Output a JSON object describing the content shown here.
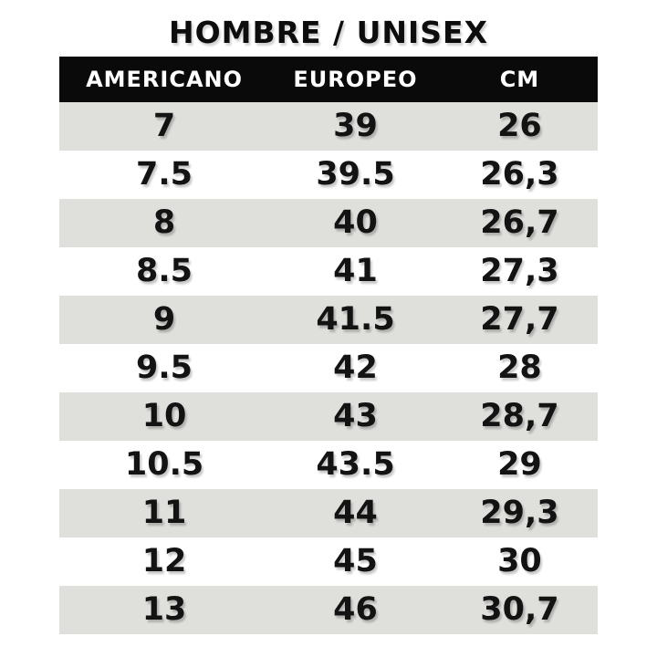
{
  "title": "HOMBRE / UNISEX",
  "chart_data": {
    "type": "table",
    "title": "HOMBRE / UNISEX",
    "columns": [
      "AMERICANO",
      "EUROPEO",
      "CM"
    ],
    "rows": [
      [
        "7",
        "39",
        "26"
      ],
      [
        "7.5",
        "39.5",
        "26,3"
      ],
      [
        "8",
        "40",
        "26,7"
      ],
      [
        "8.5",
        "41",
        "27,3"
      ],
      [
        "9",
        "41.5",
        "27,7"
      ],
      [
        "9.5",
        "42",
        "28"
      ],
      [
        "10",
        "43",
        "28,7"
      ],
      [
        "10.5",
        "43.5",
        "29"
      ],
      [
        "11",
        "44",
        "29,3"
      ],
      [
        "12",
        "45",
        "30"
      ],
      [
        "13",
        "46",
        "30,7"
      ]
    ],
    "layout": {
      "striped": true,
      "first_data_row_shaded": true,
      "header_style": "black background, white uppercase text",
      "alignment": "center"
    }
  },
  "colors": {
    "page_bg": "#ffffff",
    "header_bg": "#0a0a0a",
    "header_text": "#ffffff",
    "stripe_bg": "#dfdfdc",
    "row_bg": "#ffffff",
    "text": "#131313"
  }
}
